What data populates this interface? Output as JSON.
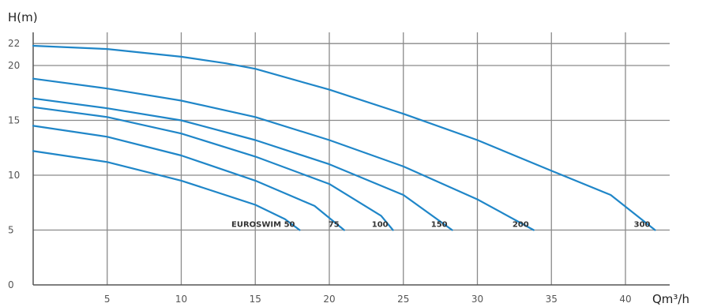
{
  "chart_data": {
    "type": "line",
    "title": "",
    "xlabel": "Qm³/h",
    "ylabel": "H(m)",
    "xlim": [
      0,
      43
    ],
    "ylim": [
      0,
      22.5
    ],
    "xticks": [
      {
        "value": 5,
        "label": "5"
      },
      {
        "value": 10,
        "label": "10"
      },
      {
        "value": 15,
        "label": "15"
      },
      {
        "value": 20,
        "label": "20"
      },
      {
        "value": 25,
        "label": "25"
      },
      {
        "value": 30,
        "label": "30"
      },
      {
        "value": 35,
        "label": "35"
      },
      {
        "value": 40,
        "label": "40"
      }
    ],
    "yticks": [
      {
        "value": 0,
        "label": "0"
      },
      {
        "value": 5,
        "label": "5"
      },
      {
        "value": 10,
        "label": "10"
      },
      {
        "value": 15,
        "label": "15"
      },
      {
        "value": 20,
        "label": "20"
      },
      {
        "value": 22,
        "label": "22"
      }
    ],
    "grid": true,
    "line_color": "#1f86c8",
    "series": [
      {
        "name": "EUROSWIM 50",
        "x": [
          0,
          5,
          10,
          15,
          17,
          18
        ],
        "y": [
          12.2,
          11.2,
          9.5,
          7.3,
          6.0,
          5.0
        ]
      },
      {
        "name": "75",
        "x": [
          0,
          5,
          10,
          15,
          19,
          21
        ],
        "y": [
          14.5,
          13.5,
          11.8,
          9.5,
          7.2,
          5.0
        ]
      },
      {
        "name": "100",
        "x": [
          0,
          5,
          10,
          15,
          20,
          23.5,
          24.3
        ],
        "y": [
          16.2,
          15.3,
          13.8,
          11.7,
          9.2,
          6.3,
          5.0
        ]
      },
      {
        "name": "150",
        "x": [
          0,
          5,
          10,
          15,
          20,
          25,
          28.3
        ],
        "y": [
          17.0,
          16.1,
          15.0,
          13.2,
          11.0,
          8.2,
          5.0
        ]
      },
      {
        "name": "200",
        "x": [
          0,
          5,
          10,
          15,
          20,
          25,
          30,
          33.8
        ],
        "y": [
          18.8,
          17.9,
          16.8,
          15.3,
          13.2,
          10.8,
          7.8,
          5.0
        ]
      },
      {
        "name": "300",
        "x": [
          0,
          5,
          10,
          13,
          15,
          20,
          25,
          30,
          35,
          39,
          42
        ],
        "y": [
          21.8,
          21.5,
          20.8,
          20.2,
          19.7,
          17.8,
          15.6,
          13.2,
          10.4,
          8.2,
          5.0
        ]
      }
    ]
  }
}
